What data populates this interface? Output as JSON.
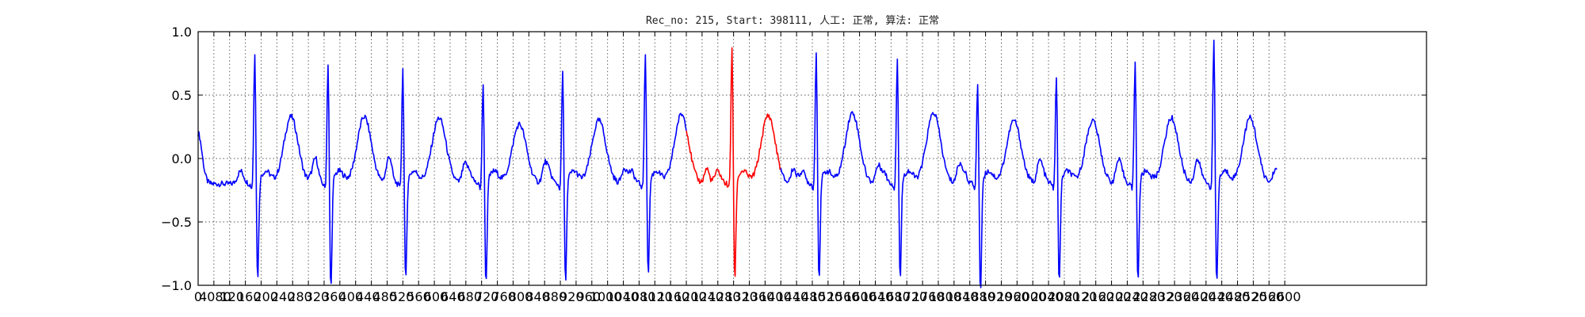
{
  "chart_data": {
    "type": "line",
    "title": "Rec_no: 215, Start: 398111, 人工: 正常, 算法: 正常",
    "xlabel": "",
    "ylabel": "",
    "xlim": [
      0,
      1560
    ],
    "ylim": [
      -1.0,
      1.0
    ],
    "grid": true,
    "x_tick_values": [
      0,
      20,
      40,
      60,
      80,
      100,
      120,
      140,
      160,
      180,
      200,
      220,
      240,
      260,
      280,
      300,
      320,
      340,
      360,
      380,
      400,
      420,
      440,
      460,
      480,
      500,
      520,
      540,
      560,
      580,
      600,
      620,
      640,
      660,
      680,
      700,
      720,
      740,
      760,
      780,
      800,
      820,
      840,
      860,
      880,
      900,
      920,
      940,
      960,
      980,
      1000,
      1020,
      1040,
      1060,
      1080,
      1100,
      1120,
      1140,
      1160,
      1180,
      1200,
      1220,
      1240,
      1260,
      1280,
      1300,
      1320,
      1340,
      1360,
      1380
    ],
    "x_tick_labels_visible": [
      "0",
      "4080",
      "120",
      "160",
      "200",
      "240",
      "280",
      "320",
      "360",
      "400",
      "440",
      "480",
      "520",
      "560",
      "600",
      "640",
      "680",
      "720",
      "760",
      "800",
      "840",
      "880",
      "920",
      "960",
      "1000",
      "1040",
      "1080",
      "1120",
      "1160",
      "1200",
      "1240",
      "1280",
      "1320",
      "1360",
      "1400",
      "1440",
      "1480",
      "1520",
      "1560",
      "1600",
      "1640",
      "1680",
      "1720",
      "1760",
      "1800",
      "1840",
      "1880",
      "1920",
      "1960",
      "2000",
      "2040",
      "2080",
      "2120",
      "2160",
      "2200",
      "2240",
      "2280",
      "2320",
      "2360",
      "2400",
      "2440",
      "2480",
      "2520",
      "2560",
      "2600"
    ],
    "y_ticks": [
      "1.0",
      "0.5",
      "0.0",
      "−0.5",
      "−1.0"
    ],
    "y_tick_values": [
      1.0,
      0.5,
      0.0,
      -0.5,
      -1.0
    ],
    "beats": [
      {
        "r_peak": 72,
        "r": 0.87,
        "s": -0.85,
        "t": 0.28,
        "color": "#0000ff"
      },
      {
        "r_peak": 165,
        "r": 0.78,
        "s": -0.93,
        "t": 0.28,
        "color": "#0000ff"
      },
      {
        "r_peak": 260,
        "r": 0.74,
        "s": -0.87,
        "t": 0.27,
        "color": "#0000ff"
      },
      {
        "r_peak": 362,
        "r": 0.62,
        "s": -0.88,
        "t": 0.22,
        "color": "#0000ff"
      },
      {
        "r_peak": 463,
        "r": 0.72,
        "s": -0.87,
        "t": 0.25,
        "color": "#0000ff"
      },
      {
        "r_peak": 568,
        "r": 0.87,
        "s": -0.82,
        "t": 0.3,
        "color": "#0000ff"
      },
      {
        "r_peak": 678,
        "r": 0.92,
        "s": -0.85,
        "t": 0.29,
        "color": "#ff0000"
      },
      {
        "r_peak": 785,
        "r": 0.87,
        "s": -0.85,
        "t": 0.31,
        "color": "#0000ff"
      },
      {
        "r_peak": 888,
        "r": 0.83,
        "s": -0.85,
        "t": 0.31,
        "color": "#0000ff"
      },
      {
        "r_peak": 990,
        "r": 0.63,
        "s": -0.94,
        "t": 0.25,
        "color": "#0000ff"
      },
      {
        "r_peak": 1090,
        "r": 0.68,
        "s": -0.88,
        "t": 0.25,
        "color": "#0000ff"
      },
      {
        "r_peak": 1190,
        "r": 0.81,
        "s": -0.86,
        "t": 0.27,
        "color": "#0000ff"
      },
      {
        "r_peak": 1290,
        "r": 0.97,
        "s": -0.89,
        "t": 0.27,
        "color": "#0000ff"
      }
    ],
    "series": [
      {
        "color": "#0000ff",
        "x_range": [
          0,
          620
        ]
      },
      {
        "color": "#ff0000",
        "x_range": [
          620,
          740
        ]
      },
      {
        "color": "#0000ff",
        "x_range": [
          740,
          1370
        ]
      }
    ]
  }
}
